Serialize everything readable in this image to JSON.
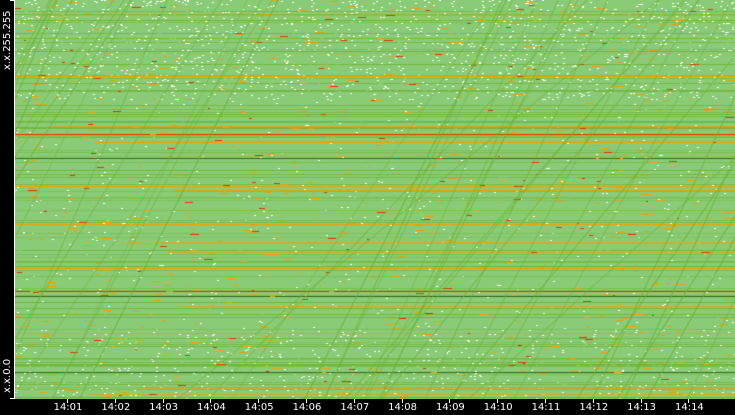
{
  "chart_data": {
    "type": "heatmap",
    "y_labels": {
      "top": "x.x.255.255",
      "bottom": "x.x.0.0"
    },
    "x_ticks": [
      "14:01",
      "14:02",
      "14:03",
      "14:04",
      "14:05",
      "14:06",
      "14:07",
      "14:08",
      "14:09",
      "14:10",
      "14:11",
      "14:12",
      "14:13",
      "14:14"
    ],
    "grid": false,
    "colors": {
      "background": "#000000",
      "base": "#8acb78",
      "sparse": "#ffffff",
      "low": "#6bb22a",
      "mid": "#f0a000",
      "high": "#e83000",
      "axis": "#ffffff"
    }
  }
}
